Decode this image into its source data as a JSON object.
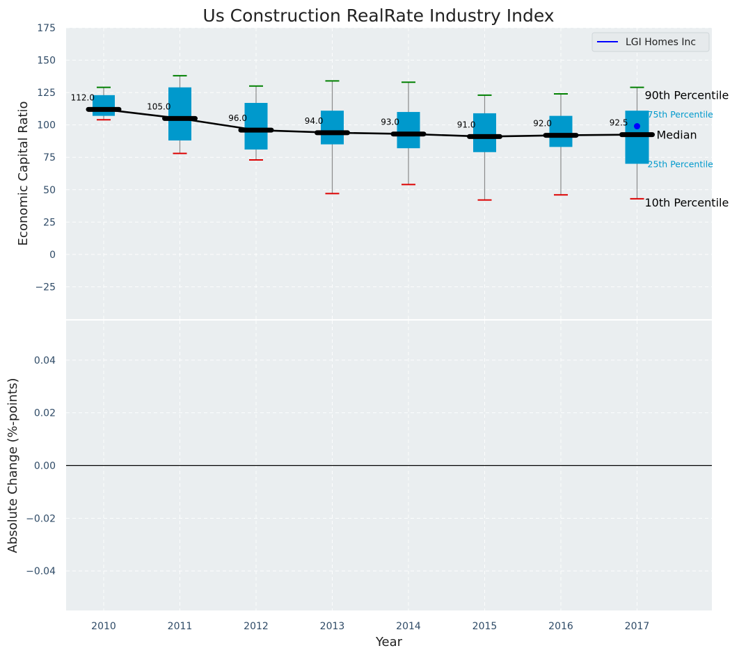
{
  "chart_data": [
    {
      "type": "box",
      "title": "Us Construction RealRate Industry Index",
      "ylabel": "Economic Capital Ratio",
      "ylim": [
        -50,
        175
      ],
      "yticks": [
        -25,
        0,
        25,
        50,
        75,
        100,
        125,
        150,
        175
      ],
      "categories": [
        "2010",
        "2011",
        "2012",
        "2013",
        "2014",
        "2015",
        "2016",
        "2017"
      ],
      "boxes": [
        {
          "year": "2010",
          "p10": 104,
          "p25": 107,
          "median": 112,
          "p75": 123,
          "p90": 129
        },
        {
          "year": "2011",
          "p10": 78,
          "p25": 88,
          "median": 105,
          "p75": 129,
          "p90": 138
        },
        {
          "year": "2012",
          "p10": 73,
          "p25": 81,
          "median": 96,
          "p75": 117,
          "p90": 130
        },
        {
          "year": "2013",
          "p10": 47,
          "p25": 85,
          "median": 94,
          "p75": 111,
          "p90": 134
        },
        {
          "year": "2014",
          "p10": 54,
          "p25": 82,
          "median": 93,
          "p75": 110,
          "p90": 133
        },
        {
          "year": "2015",
          "p10": 42,
          "p25": 79,
          "median": 91,
          "p75": 109,
          "p90": 123
        },
        {
          "year": "2016",
          "p10": 46,
          "p25": 83,
          "median": 92,
          "p75": 107,
          "p90": 124
        },
        {
          "year": "2017",
          "p10": 43,
          "p25": 70,
          "median": 92.5,
          "p75": 111,
          "p90": 129
        }
      ],
      "median_labels": [
        "112.0",
        "105.0",
        "96.0",
        "94.0",
        "93.0",
        "91.0",
        "92.0",
        "92.5"
      ],
      "company_series": {
        "name": "LGI Homes Inc",
        "points": [
          {
            "year": "2017",
            "value": 99
          }
        ]
      },
      "annotations": {
        "p90": "90th Percentile",
        "p75": "75th Percentile",
        "median": "Median",
        "p25": "25th Percentile",
        "p10": "10th Percentile"
      },
      "legend": {
        "position": "top-right",
        "entries": [
          "LGI Homes Inc"
        ]
      }
    },
    {
      "type": "line",
      "xlabel": "Year",
      "ylabel": "Absolute Change (%-points)",
      "ylim": [
        -0.055,
        0.055
      ],
      "yticks": [
        -0.04,
        -0.02,
        0.0,
        0.02,
        0.04
      ],
      "ytick_labels": [
        "−0.04",
        "−0.02",
        "0.00",
        "0.02",
        "0.04"
      ],
      "x": [
        "2010",
        "2011",
        "2012",
        "2013",
        "2014",
        "2015",
        "2016",
        "2017"
      ],
      "reference_line": 0,
      "series": []
    }
  ],
  "colors": {
    "background": "#eaeef0",
    "grid": "#ffffff",
    "box": "#0099cc",
    "median": "#000000",
    "whisker_top": "#008000",
    "whisker_bottom": "#dd0000",
    "company": "#0000ff",
    "tick_text": "#2e4a66"
  }
}
